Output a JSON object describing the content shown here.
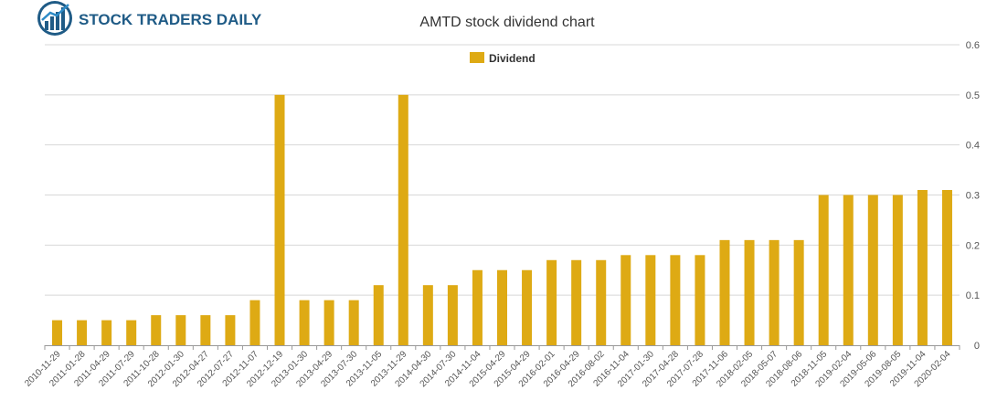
{
  "brand": {
    "name": "STOCK TRADERS DAILY",
    "primary_color": "#1f5b86",
    "accent_color": "#2d8bc7"
  },
  "chart_data": {
    "type": "bar",
    "title": "AMTD stock dividend chart",
    "xlabel": "",
    "ylabel": "",
    "ylim": [
      0,
      0.6
    ],
    "yticks": [
      0,
      0.1,
      0.2,
      0.3,
      0.4,
      0.5,
      0.6
    ],
    "yaxis_side": "right",
    "grid": true,
    "legend": "top-center",
    "series": [
      {
        "name": "Dividend",
        "color": "#deaa14",
        "values": [
          0.05,
          0.05,
          0.05,
          0.05,
          0.06,
          0.06,
          0.06,
          0.06,
          0.09,
          0.5,
          0.09,
          0.09,
          0.09,
          0.12,
          0.5,
          0.12,
          0.12,
          0.15,
          0.15,
          0.15,
          0.17,
          0.17,
          0.17,
          0.18,
          0.18,
          0.18,
          0.18,
          0.21,
          0.21,
          0.21,
          0.21,
          0.3,
          0.3,
          0.3,
          0.3,
          0.31,
          0.31
        ]
      }
    ],
    "categories": [
      "2010-11-29",
      "2011-01-28",
      "2011-04-29",
      "2011-07-29",
      "2011-10-28",
      "2012-01-30",
      "2012-04-27",
      "2012-07-27",
      "2012-11-07",
      "2012-12-19",
      "2013-01-30",
      "2013-04-29",
      "2013-07-30",
      "2013-11-05",
      "2013-11-29",
      "2014-04-30",
      "2014-07-30",
      "2014-11-04",
      "2015-04-29",
      "2015-04-29",
      "2016-02-01",
      "2016-04-29",
      "2016-08-02",
      "2016-11-04",
      "2017-01-30",
      "2017-04-28",
      "2017-07-28",
      "2017-11-06",
      "2018-02-05",
      "2018-05-07",
      "2018-08-06",
      "2018-11-05",
      "2019-02-04",
      "2019-05-06",
      "2019-08-05",
      "2019-11-04",
      "2020-02-04"
    ]
  }
}
